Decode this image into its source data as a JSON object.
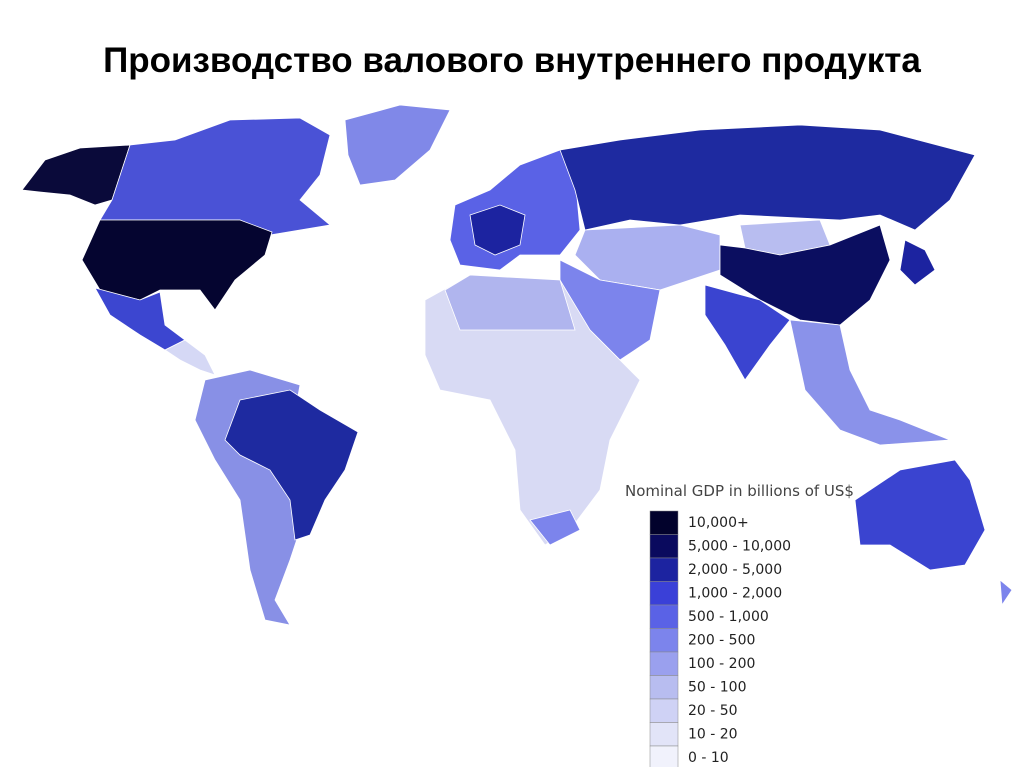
{
  "title": "Производство валового внутреннего продукта",
  "legend": {
    "title": "Nominal GDP in billions of US$",
    "items": [
      {
        "label": "10,000+",
        "color": "#02022c"
      },
      {
        "label": "5,000 - 10,000",
        "color": "#0a0a5e"
      },
      {
        "label": "2,000 - 5,000",
        "color": "#1c23a0"
      },
      {
        "label": "1,000 - 2,000",
        "color": "#3a40d8"
      },
      {
        "label": "500 - 1,000",
        "color": "#5a62e6"
      },
      {
        "label": "200 - 500",
        "color": "#7c84ec"
      },
      {
        "label": "100 - 200",
        "color": "#9aa0ee"
      },
      {
        "label": "50 - 100",
        "color": "#b8bdf0"
      },
      {
        "label": "20 - 50",
        "color": "#cfd2f5"
      },
      {
        "label": "10 - 20",
        "color": "#e2e4f8"
      },
      {
        "label": "0 - 10",
        "color": "#f1f2fc"
      }
    ]
  }
}
